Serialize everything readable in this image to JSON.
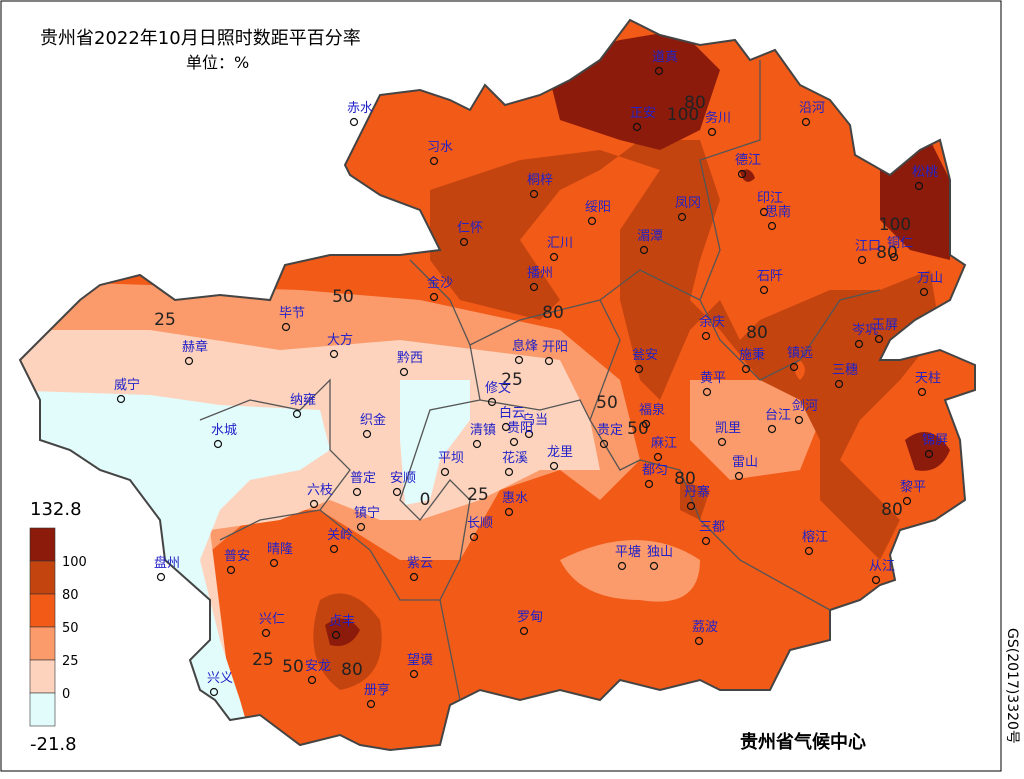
{
  "title": "贵州省2022年10月日照时数距平百分率",
  "unit": "单位：%",
  "footer": "贵州省气候中心",
  "side_note": "GS(2017)3320号",
  "legend": {
    "bounds": [
      132.8,
      100,
      80,
      50,
      25,
      0,
      -21.8
    ],
    "colors": [
      "#8c1b0c",
      "#c4440f",
      "#f25a17",
      "#fb9a6a",
      "#fdd3bd",
      "#e2fbfb"
    ]
  },
  "contour_labels": [
    "100",
    "80",
    "100",
    "80",
    "50",
    "25",
    "80",
    "80",
    "50",
    "25",
    "0",
    "25",
    "50",
    "80",
    "80",
    "25",
    "50",
    "80"
  ],
  "stations": [
    "赤水",
    "习水",
    "道真",
    "正安",
    "务川",
    "沿河",
    "桐梓",
    "德江",
    "松桃",
    "绥阳",
    "凤冈",
    "印江",
    "思南",
    "仁怀",
    "汇川",
    "湄潭",
    "江口",
    "铜仁",
    "石阡",
    "播州",
    "金沙",
    "万山",
    "毕节",
    "大方",
    "黔西",
    "息烽",
    "开阳",
    "瓮安",
    "余庆",
    "施秉",
    "镇远",
    "岑巩",
    "玉屏",
    "三穗",
    "天柱",
    "赫章",
    "威宁",
    "纳雍",
    "织金",
    "修文",
    "白云",
    "乌当",
    "清镇",
    "贵阳",
    "贵定",
    "福泉",
    "黄平",
    "凯里",
    "台江",
    "剑河",
    "锦屏",
    "水城",
    "平坝",
    "花溪",
    "龙里",
    "麻江",
    "雷山",
    "普定",
    "安顺",
    "六枝",
    "惠水",
    "都匀",
    "丹寨",
    "黎平",
    "镇宁",
    "关岭",
    "长顺",
    "三都",
    "榕江",
    "普安",
    "晴隆",
    "紫云",
    "平塘",
    "独山",
    "从江",
    "盘州",
    "兴仁",
    "贞丰",
    "罗甸",
    "荔波",
    "兴义",
    "安龙",
    "望谟",
    "册亨"
  ]
}
